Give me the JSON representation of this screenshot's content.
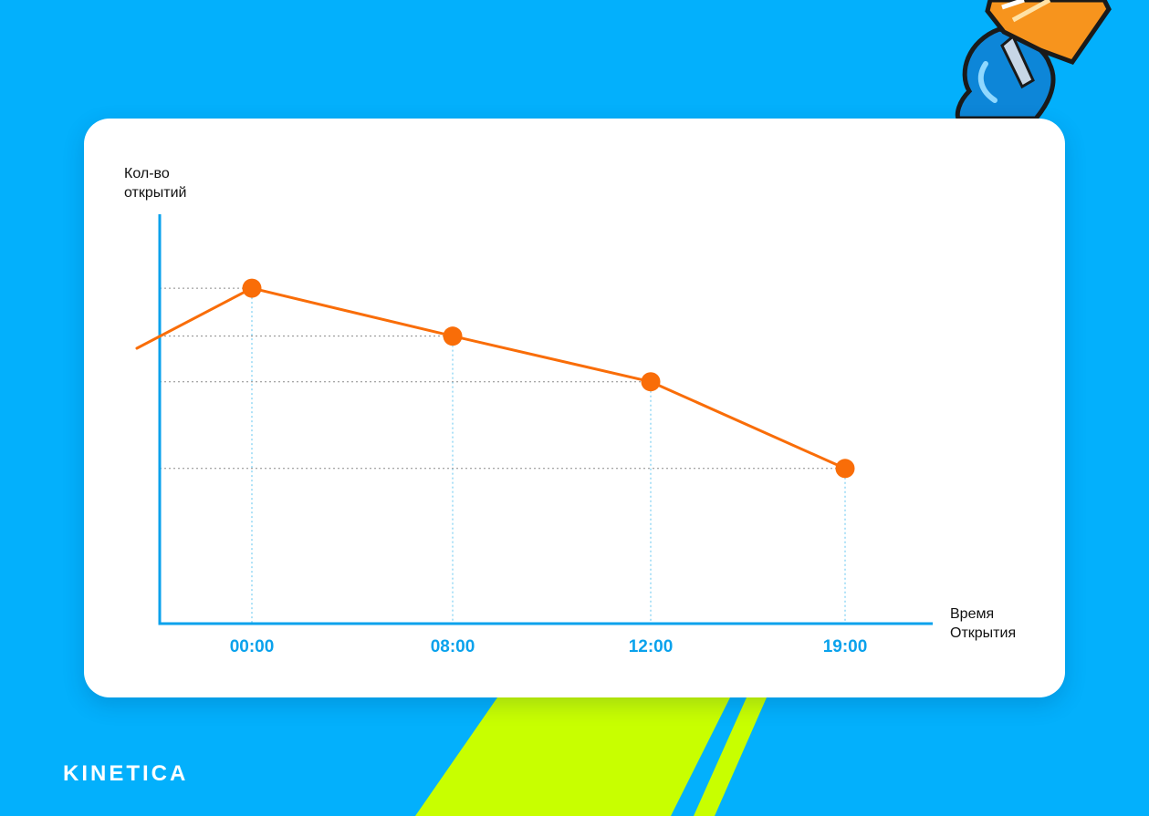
{
  "chart_data": {
    "type": "line",
    "title": "",
    "ylabel_lines": [
      "Кол-во",
      "открытий"
    ],
    "xlabel_lines": [
      "Время",
      "Открытия"
    ],
    "categories": [
      "00:00",
      "08:00",
      "12:00",
      "19:00"
    ],
    "values": [
      100,
      79,
      59,
      21
    ],
    "ylim": [
      -47,
      132
    ],
    "grid": "dotted guides to each point",
    "colors": {
      "line": "#f96d08",
      "axis": "#0aa2ec",
      "tick_label": "#0aa2ec",
      "guide_vertical": "#5fc5f0",
      "guide_horizontal": "#8a8a8a"
    }
  },
  "brand": {
    "name": "KINETICA"
  },
  "decor": {
    "background": "#03b0fc",
    "accent": "#c8ff00",
    "pen_icon": "pen-nib-icon"
  }
}
